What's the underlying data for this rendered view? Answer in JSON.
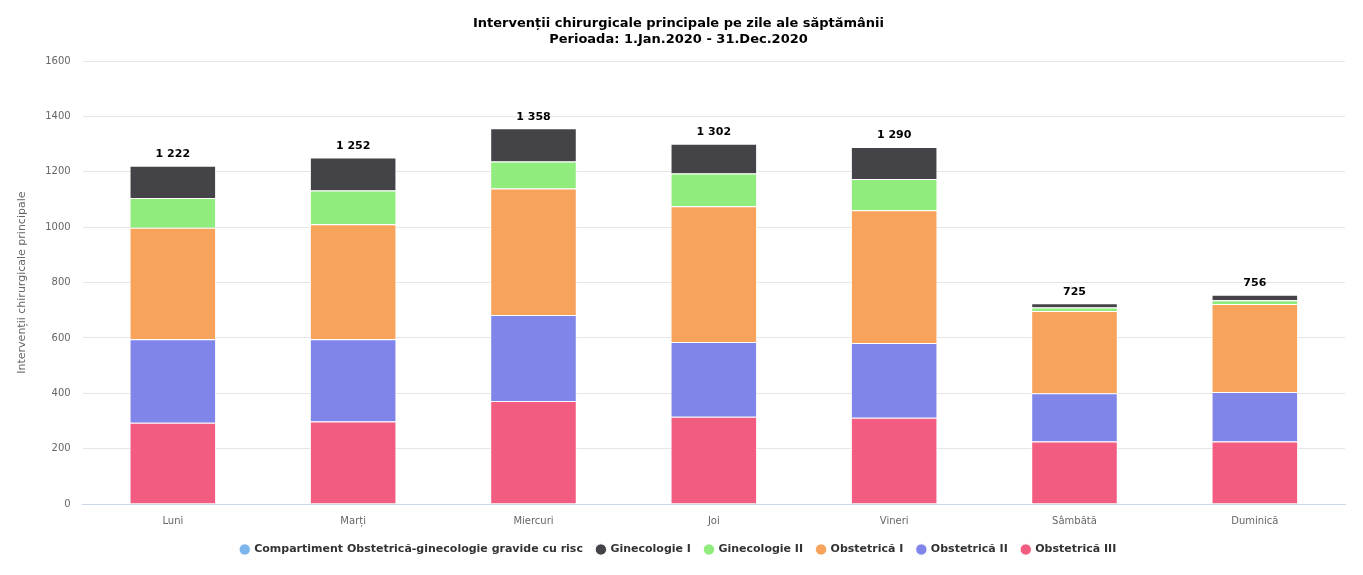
{
  "chart_data": {
    "type": "bar",
    "title": "Intervenții chirurgicale principale pe zile ale săptămânii",
    "subtitle": "Perioada: 1.Jan.2020 - 31.Dec.2020",
    "ylabel": "Intervenții chirurgicale principale",
    "categories": [
      "Luni",
      "Marți",
      "Miercuri",
      "Joi",
      "Vineri",
      "Sâmbătă",
      "Duminică"
    ],
    "stacked": true,
    "series": [
      {
        "name": "Obstetrică III",
        "color": "#f15c80",
        "values": [
          294,
          298,
          372,
          315,
          312,
          226,
          226
        ]
      },
      {
        "name": "Obstetrică II",
        "color": "#8085e9",
        "values": [
          301,
          297,
          311,
          270,
          270,
          174,
          179
        ]
      },
      {
        "name": "Obstetrică I",
        "color": "#f7a35c",
        "values": [
          403,
          416,
          457,
          491,
          479,
          297,
          318
        ]
      },
      {
        "name": "Ginecologie II",
        "color": "#90ed7d",
        "values": [
          108,
          122,
          98,
          118,
          113,
          13,
          13
        ]
      },
      {
        "name": "Ginecologie I",
        "color": "#434348",
        "values": [
          116,
          119,
          120,
          108,
          116,
          15,
          20
        ]
      },
      {
        "name": "Compartiment Obstetrică-ginecologie gravide cu risc",
        "color": "#7cb5ec",
        "values": [
          0,
          0,
          0,
          0,
          0,
          0,
          0
        ]
      }
    ],
    "totals": [
      "1 222",
      "1 252",
      "1 358",
      "1 302",
      "1 290",
      "725",
      "756"
    ],
    "ylim": [
      0,
      1600
    ],
    "yticks": [
      0,
      200,
      400,
      600,
      800,
      1000,
      1200,
      1400,
      1600
    ],
    "grid": "y",
    "legend": "bottom"
  }
}
